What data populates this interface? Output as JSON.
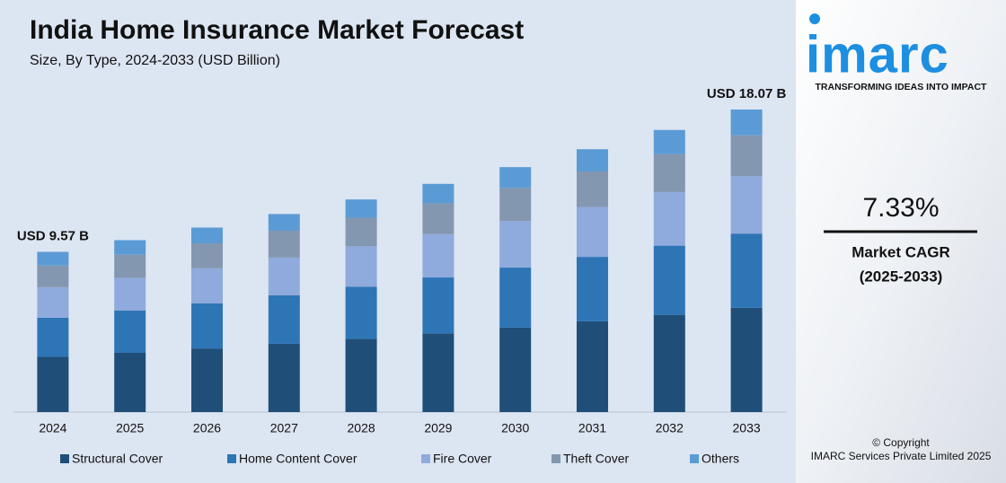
{
  "chart_data": {
    "type": "stacked_bar",
    "title": "India Home Insurance Market Forecast",
    "subtitle": "Size, By Type, 2024-2033 (USD Billion)",
    "categories": [
      "2024",
      "2025",
      "2026",
      "2027",
      "2028",
      "2029",
      "2030",
      "2031",
      "2032",
      "2033"
    ],
    "series": [
      {
        "name": "Structural Cover",
        "color": "#1f4e79",
        "values": [
          3.3,
          3.54,
          3.8,
          4.08,
          4.38,
          4.7,
          5.05,
          5.42,
          5.81,
          6.23
        ]
      },
      {
        "name": "Home Content Cover",
        "color": "#2e75b6",
        "values": [
          2.34,
          2.52,
          2.7,
          2.9,
          3.11,
          3.34,
          3.58,
          3.85,
          4.13,
          4.43
        ]
      },
      {
        "name": "Fire Cover",
        "color": "#8faadc",
        "values": [
          1.82,
          1.95,
          2.09,
          2.25,
          2.41,
          2.59,
          2.78,
          2.98,
          3.2,
          3.43
        ]
      },
      {
        "name": "Theft Cover",
        "color": "#8497b0",
        "values": [
          1.29,
          1.39,
          1.49,
          1.6,
          1.71,
          1.84,
          1.98,
          2.12,
          2.27,
          2.44
        ]
      },
      {
        "name": "Others",
        "color": "#5b9bd5",
        "values": [
          0.82,
          0.87,
          0.94,
          1.0,
          1.09,
          1.16,
          1.24,
          1.33,
          1.44,
          1.54
        ]
      }
    ],
    "annotations": [
      "USD 9.57 B",
      "USD 18.07 B"
    ]
  },
  "sidebar": {
    "logo": "imarc",
    "tagline": "TRANSFORMING IDEAS INTO IMPACT",
    "cagr": "7.33%",
    "cagr_label": "Market CAGR",
    "cagr_period": "(2025-2033)",
    "copyright": "© Copyright",
    "company": "IMARC Services Private Limited 2025"
  }
}
